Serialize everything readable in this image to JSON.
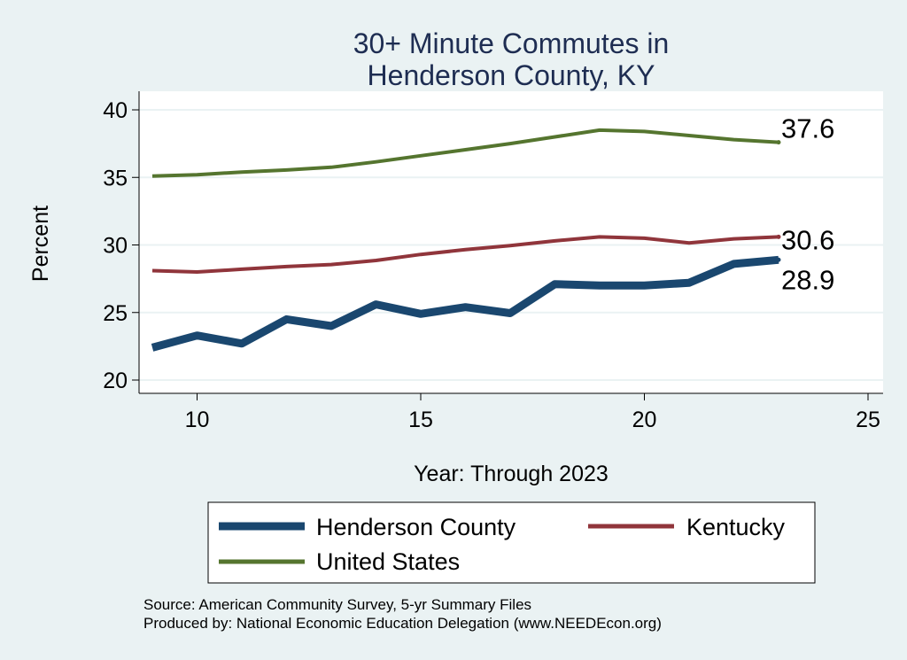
{
  "chart_data": {
    "type": "line",
    "title": [
      "30+ Minute Commutes in",
      "Henderson County, KY"
    ],
    "xlabel": "Year: Through 2023",
    "ylabel": "Percent",
    "xlim": [
      9,
      25
    ],
    "ylim": [
      20,
      40.5
    ],
    "x_ticks": [
      10,
      15,
      20,
      25
    ],
    "y_ticks": [
      20,
      25,
      30,
      35,
      40
    ],
    "x": [
      9,
      10,
      11,
      12,
      13,
      14,
      15,
      16,
      17,
      18,
      19,
      20,
      21,
      22,
      23
    ],
    "series": [
      {
        "name": "Henderson County",
        "color": "#1a476f",
        "values": [
          22.4,
          23.3,
          22.7,
          24.5,
          24.0,
          25.6,
          24.9,
          25.4,
          24.95,
          27.1,
          27.0,
          27.0,
          27.2,
          28.6,
          28.9
        ],
        "end_label": "28.9"
      },
      {
        "name": "Kentucky",
        "color": "#90353b",
        "values": [
          28.1,
          28.0,
          28.2,
          28.4,
          28.55,
          28.85,
          29.3,
          29.65,
          29.95,
          30.3,
          30.6,
          30.5,
          30.15,
          30.45,
          30.6
        ],
        "end_label": "30.6"
      },
      {
        "name": "United States",
        "color": "#55752f",
        "values": [
          35.1,
          35.2,
          35.4,
          35.55,
          35.75,
          36.15,
          36.6,
          37.05,
          37.5,
          38.0,
          38.5,
          38.4,
          38.1,
          37.8,
          37.6
        ],
        "end_label": "37.6"
      }
    ],
    "legend": [
      "Henderson County",
      "Kentucky",
      "United States"
    ],
    "notes": [
      "Source: American Community Survey, 5-yr Summary Files",
      "Produced by: National Economic Education Delegation (www.NEEDEcon.org)"
    ]
  }
}
